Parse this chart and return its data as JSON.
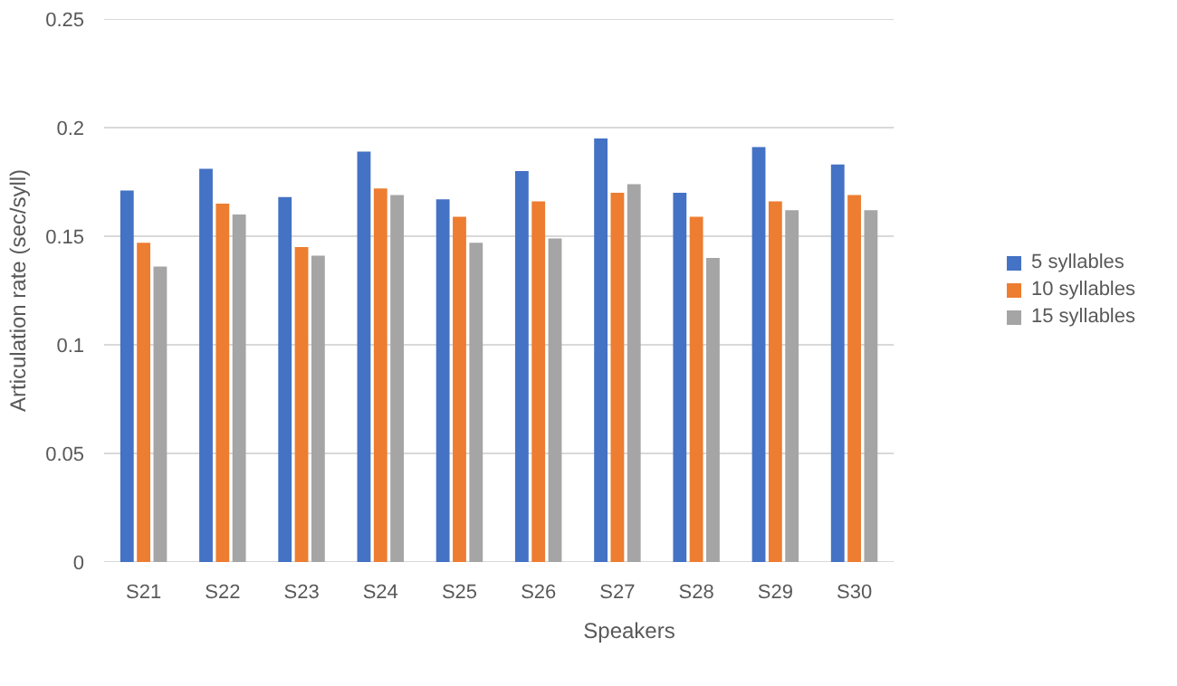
{
  "chart_data": {
    "type": "bar",
    "xlabel": "Speakers",
    "ylabel": "Articulation rate (sec/syll)",
    "categories": [
      "S21",
      "S22",
      "S23",
      "S24",
      "S25",
      "S26",
      "S27",
      "S28",
      "S29",
      "S30"
    ],
    "series": [
      {
        "name": "5 syllables",
        "color": "#4472c4",
        "values": [
          0.171,
          0.181,
          0.168,
          0.189,
          0.167,
          0.18,
          0.195,
          0.17,
          0.191,
          0.183
        ]
      },
      {
        "name": "10 syllables",
        "color": "#ed7d31",
        "values": [
          0.147,
          0.165,
          0.145,
          0.172,
          0.159,
          0.166,
          0.17,
          0.159,
          0.166,
          0.169
        ]
      },
      {
        "name": "15 syllables",
        "color": "#a5a5a5",
        "values": [
          0.136,
          0.16,
          0.141,
          0.169,
          0.147,
          0.149,
          0.174,
          0.14,
          0.162,
          0.162
        ]
      }
    ],
    "ylim": [
      0,
      0.25
    ],
    "yticks": [
      0,
      0.05,
      0.1,
      0.15,
      0.2,
      0.25
    ],
    "grid": "y",
    "legend": "right"
  }
}
